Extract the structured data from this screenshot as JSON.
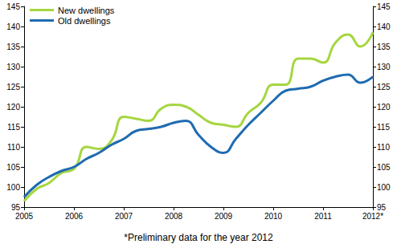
{
  "chart_data": {
    "type": "line",
    "categories": [
      "2005",
      null,
      null,
      null,
      "2006",
      null,
      null,
      null,
      "2007",
      null,
      null,
      null,
      "2008",
      null,
      null,
      null,
      "2009",
      null,
      null,
      null,
      "2010",
      null,
      null,
      null,
      "2011",
      null,
      null,
      null,
      "2012*"
    ],
    "series": [
      {
        "name": "New dwellings",
        "color": "#a5d63f",
        "values": [
          96.5,
          99.5,
          101,
          103.5,
          104.5,
          110,
          109.5,
          111.5,
          117.5,
          117,
          116.5,
          119.5,
          120.5,
          120,
          118,
          116,
          115.5,
          115,
          118.5,
          121,
          125.5,
          125.5,
          132,
          132,
          131,
          136,
          138,
          135,
          138.5
        ]
      },
      {
        "name": "Old dwellings",
        "color": "#1f6bb0",
        "values": [
          97.5,
          100.5,
          102.5,
          104,
          105,
          107,
          108.5,
          110.5,
          112,
          114,
          114.5,
          115,
          116,
          116.5,
          113,
          110,
          108.5,
          112,
          115.5,
          118.5,
          121.5,
          124,
          124.5,
          125,
          126.5,
          127.5,
          128,
          126,
          127.5
        ]
      }
    ],
    "ylim": [
      95,
      145
    ],
    "yticks": [
      95,
      100,
      105,
      110,
      115,
      120,
      125,
      130,
      135,
      140,
      145
    ],
    "y2lim": [
      95,
      145
    ],
    "y2ticks": [
      95,
      100,
      105,
      110,
      115,
      120,
      125,
      130,
      135,
      140,
      145
    ],
    "grid": false,
    "legend": "upper left",
    "annotations": [
      "*Preliminary data for the year 2012"
    ]
  }
}
